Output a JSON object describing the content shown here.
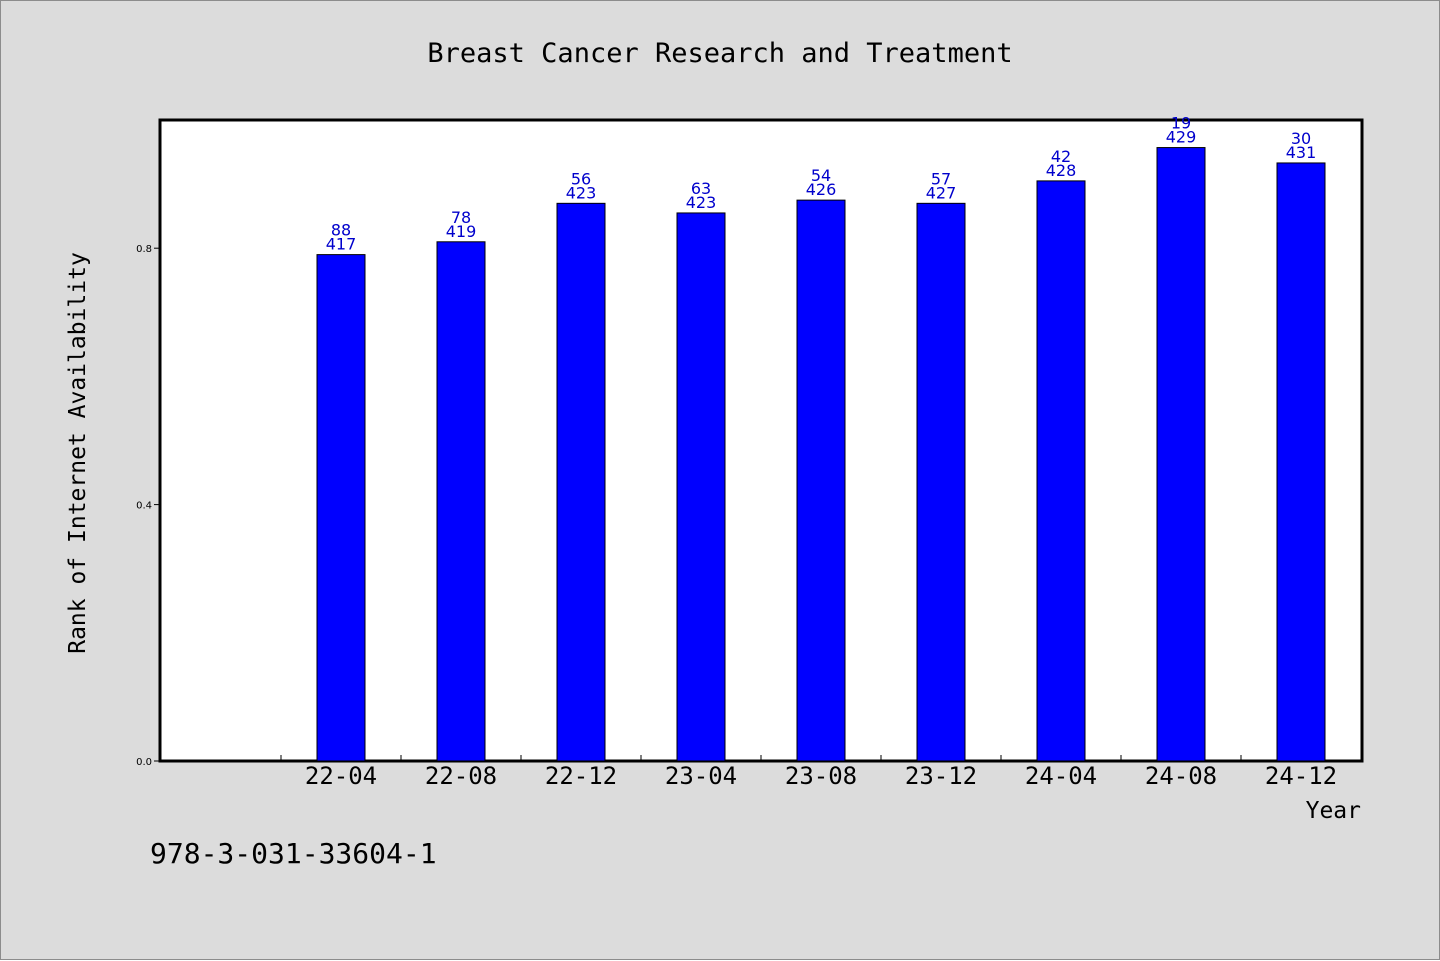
{
  "chart_data": {
    "type": "bar",
    "title": "Breast Cancer Research and Treatment",
    "xlabel": "Year",
    "ylabel": "Rank of Internet Availability",
    "categories": [
      "22-04",
      "22-08",
      "22-12",
      "23-04",
      "23-08",
      "23-12",
      "24-04",
      "24-08",
      "24-12"
    ],
    "values": [
      0.79,
      0.81,
      0.87,
      0.855,
      0.875,
      0.87,
      0.905,
      0.957,
      0.933
    ],
    "label_top": [
      "88",
      "78",
      "56",
      "63",
      "54",
      "57",
      "42",
      "19",
      "30"
    ],
    "label_bottom": [
      "417",
      "419",
      "423",
      "423",
      "426",
      "427",
      "428",
      "429",
      "431"
    ],
    "yticks": [
      "0.0",
      "0.4",
      "0.8"
    ],
    "ytick_values": [
      0,
      0.4,
      0.8
    ],
    "ylim": [
      0,
      1.0
    ],
    "grid": false,
    "legend": "none",
    "bar_color": "#0000ff",
    "label_color": "#0000cc"
  },
  "footer": {
    "code": "978-3-031-33604-1"
  }
}
